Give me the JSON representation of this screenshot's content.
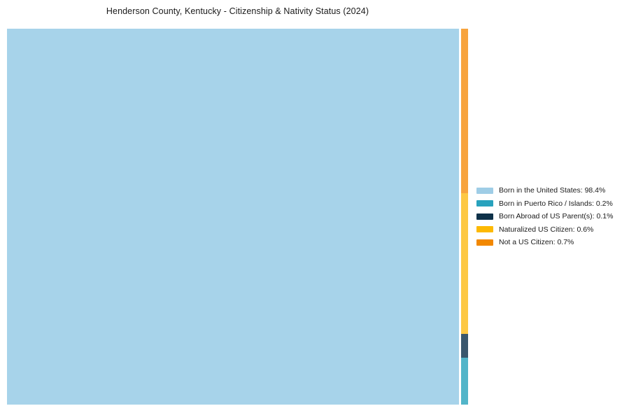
{
  "title": "Henderson County, Kentucky - Citizenship & Nativity Status (2024)",
  "chart_data": {
    "type": "treemap",
    "title": "Henderson County, Kentucky - Citizenship & Nativity Status (2024)",
    "unit": "%",
    "items": [
      {
        "label": "Born in the United States",
        "value": 98.4,
        "legend_text": "Born in the United States: 98.4%",
        "rect_color": "#a7d3ea",
        "legend_color": "#9fcde6"
      },
      {
        "label": "Born in Puerto Rico / Islands",
        "value": 0.2,
        "legend_text": "Born in Puerto Rico / Islands: 0.2%",
        "rect_color": "#52b5c9",
        "legend_color": "#28a2bd"
      },
      {
        "label": "Born Abroad of US Parent(s)",
        "value": 0.1,
        "legend_text": "Born Abroad of US Parent(s): 0.1%",
        "rect_color": "#3a576d",
        "legend_color": "#0e3149"
      },
      {
        "label": "Naturalized US Citizen",
        "value": 0.6,
        "legend_text": "Naturalized US Citizen: 0.6%",
        "rect_color": "#fdc844",
        "legend_color": "#fdb903"
      },
      {
        "label": "Not a US Citizen",
        "value": 0.7,
        "legend_text": "Not a US Citizen: 0.7%",
        "rect_color": "#f7a43e",
        "legend_color": "#f28800"
      }
    ],
    "layout": {
      "background": "#ffffff",
      "legend_position": "right-middle",
      "main_rect_item": "Born in the United States",
      "side_strip_order_top_to_bottom": [
        "Not a US Citizen",
        "Naturalized US Citizen",
        "Born Abroad of US Parent(s)",
        "Born in Puerto Rico / Islands"
      ]
    }
  }
}
